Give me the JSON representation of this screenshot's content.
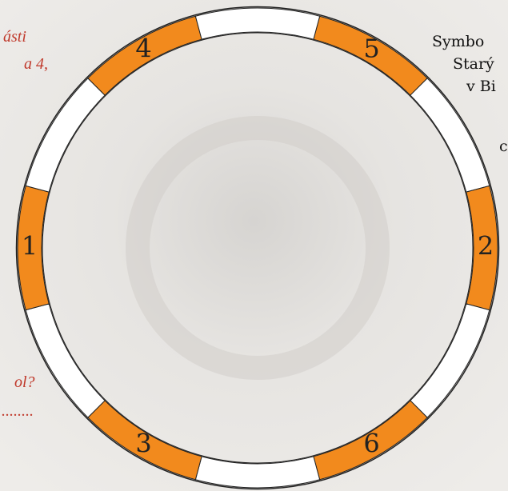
{
  "left_text": {
    "lines": [
      "ásti",
      "a  4,",
      "ol?",
      "........"
    ]
  },
  "right_text": {
    "lines": [
      "Symbo",
      "Starý",
      "v Bi",
      "c"
    ]
  },
  "ring": {
    "labels": [
      "5",
      "2",
      "6",
      "3",
      "1",
      "4"
    ]
  }
}
